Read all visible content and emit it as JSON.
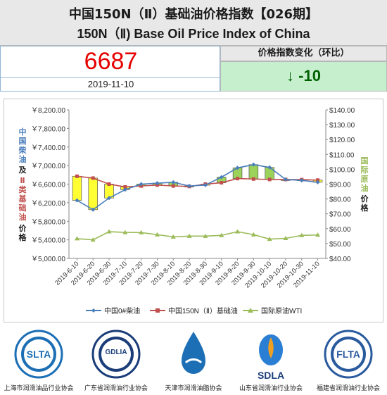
{
  "header": {
    "title_cn": "中国150N（Ⅱ）基础油价格指数【026期】",
    "title_en": "150N（Ⅱ) Base Oil Price Index of China"
  },
  "index": {
    "value": "6687",
    "date": "2019-11-10",
    "change_label": "价格指数变化（环比）",
    "change_value": "↓ -10",
    "value_color": "#e60000",
    "change_color": "#006100"
  },
  "chart_data": {
    "type": "candlestick+line",
    "x": [
      "2019-6-10",
      "2019-6-20",
      "2019-6-30",
      "2019-7-10",
      "2019-7-20",
      "2019-7-30",
      "2019-8-10",
      "2019-8-20",
      "2019-8-30",
      "2019-9-10",
      "2019-9-20",
      "2019-9-30",
      "2019-10-10",
      "2019-10-20",
      "2019-10-30",
      "2019-11-10"
    ],
    "left_axis": {
      "ticks": [
        "￥5,000.00",
        "￥5,400.00",
        "￥5,800.00",
        "￥6,200.00",
        "￥6,600.00",
        "￥7,000.00",
        "￥7,400.00",
        "￥7,800.00",
        "￥8,200.00"
      ],
      "ylim": [
        5000,
        8200
      ],
      "label_cn_1": "中国柴油",
      "label_cn_2": "及",
      "label_cn_3": "Ⅱ类基础油",
      "label_cn_4": "价格"
    },
    "right_axis": {
      "ticks": [
        "$40.00",
        "$50.00",
        "$60.00",
        "$70.00",
        "$80.00",
        "$90.00",
        "$100.00",
        "$110.00",
        "$120.00",
        "$130.00",
        "$140.00"
      ],
      "ylim": [
        40,
        140
      ],
      "label_cn_1": "国际原油",
      "label_cn_2": "价格"
    },
    "series": [
      {
        "name": "中国0#柴油",
        "color": "#4a7ebb",
        "axis": "left",
        "values": [
          6250,
          6050,
          6300,
          6480,
          6600,
          6620,
          6640,
          6560,
          6580,
          6750,
          6950,
          7020,
          6960,
          6700,
          6680,
          6640
        ]
      },
      {
        "name": "中国150N（Ⅱ）基础油",
        "color": "#c0504d",
        "axis": "left",
        "values": [
          6770,
          6730,
          6600,
          6540,
          6560,
          6580,
          6560,
          6550,
          6600,
          6630,
          6720,
          6710,
          6700,
          6700,
          6697,
          6687
        ]
      },
      {
        "name": "国际原油WTI",
        "color": "#9bbb59",
        "axis": "right",
        "values": [
          53.3,
          52.5,
          58.0,
          57.5,
          57.4,
          56.0,
          54.5,
          55.0,
          55.0,
          55.5,
          58.0,
          56.0,
          53.0,
          53.5,
          55.5,
          55.8
        ]
      }
    ],
    "grid": false,
    "legend": "bottom"
  },
  "logos": [
    {
      "abbr": "SLTA",
      "name": "上海市润滑油品行业协会",
      "color": "#1c6fb5"
    },
    {
      "abbr": "GDLIA",
      "name": "广东省润滑油行业协会",
      "color": "#1a3d7a"
    },
    {
      "abbr": "",
      "name": "天津市润滑油脂协会",
      "color": "#1c6fb5"
    },
    {
      "abbr": "SDLA",
      "name": "山东省润滑油行业协会",
      "color": "#1a3d7a"
    },
    {
      "abbr": "FLTA",
      "name": "福建省润滑油行业协会",
      "color": "#2a5a9e"
    }
  ]
}
